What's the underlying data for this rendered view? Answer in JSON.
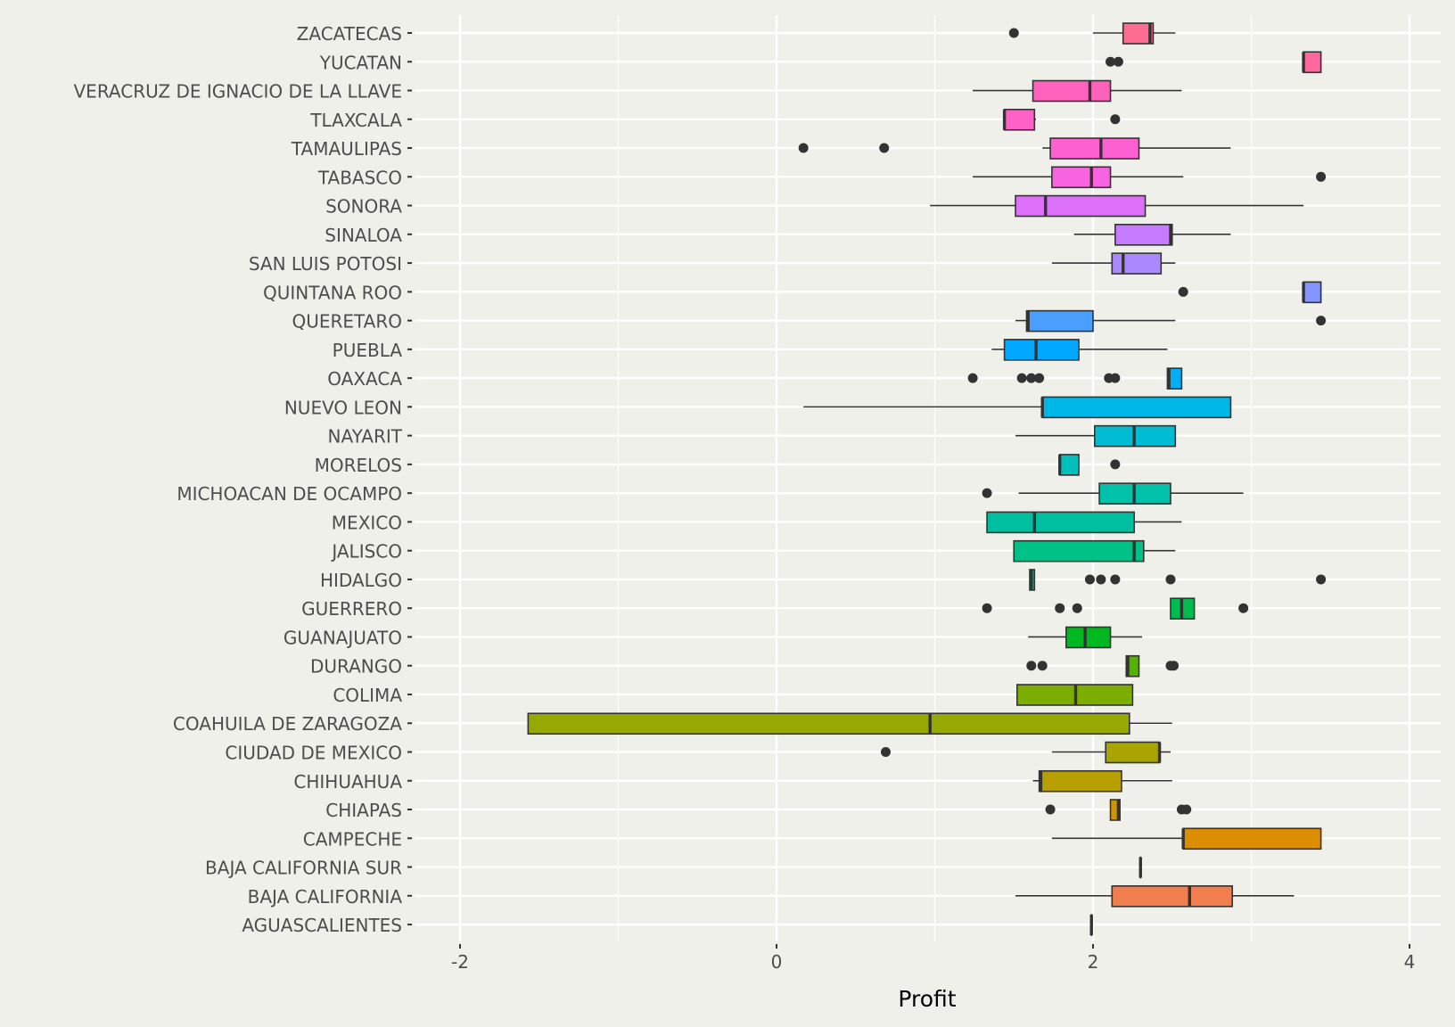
{
  "chart_data": {
    "type": "boxplot",
    "orientation": "horizontal",
    "title": "",
    "xlabel": "Profit",
    "ylabel": "",
    "xlim": [
      -2.3,
      4.2
    ],
    "x_ticks": [
      -2,
      0,
      2,
      4
    ],
    "x_tick_labels": [
      "-2",
      "0",
      "2",
      "4"
    ],
    "grid": true,
    "legend": "none",
    "categories": [
      {
        "name": "ZACATECAS",
        "color": "#FF6C91",
        "whisker_low": 2.0,
        "q1": 2.19,
        "median": 2.36,
        "q3": 2.38,
        "whisker_high": 2.52,
        "outliers": [
          1.5
        ]
      },
      {
        "name": "YUCATAN",
        "color": "#FF689F",
        "whisker_low": 3.33,
        "q1": 3.33,
        "median": 3.33,
        "q3": 3.44,
        "whisker_high": 3.44,
        "outliers": [
          2.11,
          2.16
        ]
      },
      {
        "name": "VERACRUZ DE IGNACIO DE LA LLAVE",
        "color": "#FF62BC",
        "whisker_low": 1.24,
        "q1": 1.62,
        "median": 1.98,
        "q3": 2.11,
        "whisker_high": 2.56,
        "outliers": []
      },
      {
        "name": "TLAXCALA",
        "color": "#FF61C7",
        "whisker_low": 1.44,
        "q1": 1.44,
        "median": 1.44,
        "q3": 1.63,
        "whisker_high": 1.64,
        "outliers": [
          2.14
        ]
      },
      {
        "name": "TAMAULIPAS",
        "color": "#FD61D1",
        "whisker_low": 1.68,
        "q1": 1.73,
        "median": 2.05,
        "q3": 2.29,
        "whisker_high": 2.87,
        "outliers": [
          0.17,
          0.68
        ]
      },
      {
        "name": "TABASCO",
        "color": "#F763E0",
        "whisker_low": 1.24,
        "q1": 1.74,
        "median": 1.99,
        "q3": 2.11,
        "whisker_high": 2.57,
        "outliers": [
          3.44
        ]
      },
      {
        "name": "SONORA",
        "color": "#DE71F9",
        "whisker_low": 0.97,
        "q1": 1.51,
        "median": 1.7,
        "q3": 2.33,
        "whisker_high": 3.33,
        "outliers": []
      },
      {
        "name": "SINALOA",
        "color": "#C77CFF",
        "whisker_low": 1.88,
        "q1": 2.14,
        "median": 2.49,
        "q3": 2.5,
        "whisker_high": 2.87,
        "outliers": []
      },
      {
        "name": "SAN LUIS POTOSI",
        "color": "#AC88FF",
        "whisker_low": 1.74,
        "q1": 2.12,
        "median": 2.19,
        "q3": 2.43,
        "whisker_high": 2.52,
        "outliers": []
      },
      {
        "name": "QUINTANA ROO",
        "color": "#8494FF",
        "whisker_low": 3.33,
        "q1": 3.33,
        "median": 3.33,
        "q3": 3.44,
        "whisker_high": 3.44,
        "outliers": [
          2.57
        ]
      },
      {
        "name": "QUERETARO",
        "color": "#4B9FFC",
        "whisker_low": 1.51,
        "q1": 1.58,
        "median": 1.59,
        "q3": 2.0,
        "whisker_high": 2.52,
        "outliers": [
          3.44
        ]
      },
      {
        "name": "PUEBLA",
        "color": "#00A9FF",
        "whisker_low": 1.36,
        "q1": 1.44,
        "median": 1.64,
        "q3": 1.91,
        "whisker_high": 2.47,
        "outliers": []
      },
      {
        "name": "OAXACA",
        "color": "#00B0F6",
        "whisker_low": 2.47,
        "q1": 2.47,
        "median": 2.48,
        "q3": 2.56,
        "whisker_high": 2.56,
        "outliers": [
          1.24,
          1.55,
          1.61,
          1.66,
          2.1,
          2.14
        ]
      },
      {
        "name": "NUEVO LEON",
        "color": "#00B8E7",
        "whisker_low": 0.17,
        "q1": 1.68,
        "median": 1.68,
        "q3": 2.87,
        "whisker_high": 2.87,
        "outliers": []
      },
      {
        "name": "NAYARIT",
        "color": "#00BDD4",
        "whisker_low": 1.51,
        "q1": 2.01,
        "median": 2.26,
        "q3": 2.52,
        "whisker_high": 2.52,
        "outliers": []
      },
      {
        "name": "MORELOS",
        "color": "#00C0BB",
        "whisker_low": 1.79,
        "q1": 1.79,
        "median": 1.79,
        "q3": 1.91,
        "whisker_high": 1.91,
        "outliers": [
          2.14
        ]
      },
      {
        "name": "MICHOACAN DE OCAMPO",
        "color": "#00C1A9",
        "whisker_low": 1.53,
        "q1": 2.04,
        "median": 2.26,
        "q3": 2.49,
        "whisker_high": 2.95,
        "outliers": [
          1.33
        ]
      },
      {
        "name": "MEXICO",
        "color": "#00BFA0",
        "whisker_low": 1.33,
        "q1": 1.33,
        "median": 1.63,
        "q3": 2.26,
        "whisker_high": 2.56,
        "outliers": []
      },
      {
        "name": "JALISCO",
        "color": "#00C186",
        "whisker_low": 1.5,
        "q1": 1.5,
        "median": 2.26,
        "q3": 2.32,
        "whisker_high": 2.52,
        "outliers": []
      },
      {
        "name": "HIDALGO",
        "color": "#00BF7D",
        "whisker_low": 1.6,
        "q1": 1.6,
        "median": 1.61,
        "q3": 1.63,
        "whisker_high": 1.63,
        "outliers": [
          1.98,
          2.05,
          2.14,
          2.49,
          3.44
        ]
      },
      {
        "name": "GUERRERO",
        "color": "#00BB4E",
        "whisker_low": 2.49,
        "q1": 2.49,
        "median": 2.56,
        "q3": 2.64,
        "whisker_high": 2.64,
        "outliers": [
          1.33,
          1.79,
          1.9,
          2.95
        ]
      },
      {
        "name": "GUANAJUATO",
        "color": "#00B81F",
        "whisker_low": 1.59,
        "q1": 1.83,
        "median": 1.95,
        "q3": 2.11,
        "whisker_high": 2.31,
        "outliers": []
      },
      {
        "name": "DURANGO",
        "color": "#53B400",
        "whisker_low": 2.21,
        "q1": 2.21,
        "median": 2.22,
        "q3": 2.29,
        "whisker_high": 2.29,
        "outliers": [
          1.61,
          1.68,
          2.49,
          2.51
        ]
      },
      {
        "name": "COLIMA",
        "color": "#7CAE00",
        "whisker_low": 1.52,
        "q1": 1.52,
        "median": 1.89,
        "q3": 2.25,
        "whisker_high": 2.25,
        "outliers": []
      },
      {
        "name": "COAHUILA DE ZARAGOZA",
        "color": "#96A900",
        "whisker_low": -1.57,
        "q1": -1.57,
        "median": 0.97,
        "q3": 2.23,
        "whisker_high": 2.5,
        "outliers": []
      },
      {
        "name": "CIUDAD DE MEXICO",
        "color": "#A8A400",
        "whisker_low": 1.74,
        "q1": 2.08,
        "median": 2.42,
        "q3": 2.42,
        "whisker_high": 2.49,
        "outliers": [
          0.69
        ]
      },
      {
        "name": "CHIHUAHUA",
        "color": "#B79F00",
        "whisker_low": 1.62,
        "q1": 1.66,
        "median": 1.67,
        "q3": 2.18,
        "whisker_high": 2.5,
        "outliers": []
      },
      {
        "name": "CHIAPAS",
        "color": "#CF9400",
        "whisker_low": 2.11,
        "q1": 2.11,
        "median": 2.16,
        "q3": 2.17,
        "whisker_high": 2.17,
        "outliers": [
          1.73,
          2.56,
          2.59
        ]
      },
      {
        "name": "CAMPECHE",
        "color": "#DB8E00",
        "whisker_low": 1.74,
        "q1": 2.57,
        "median": 2.57,
        "q3": 3.44,
        "whisker_high": 3.44,
        "outliers": []
      },
      {
        "name": "BAJA CALIFORNIA SUR",
        "color": "#E58700",
        "whisker_low": 2.3,
        "q1": 2.3,
        "median": 2.3,
        "q3": 2.3,
        "whisker_high": 2.3,
        "outliers": []
      },
      {
        "name": "BAJA CALIFORNIA",
        "color": "#F07E4F",
        "whisker_low": 1.51,
        "q1": 2.12,
        "median": 2.61,
        "q3": 2.88,
        "whisker_high": 3.27,
        "outliers": []
      },
      {
        "name": "AGUASCALIENTES",
        "color": "#F8766D",
        "whisker_low": 1.99,
        "q1": 1.99,
        "median": 1.99,
        "q3": 1.99,
        "whisker_high": 1.99,
        "outliers": []
      }
    ],
    "colors": {
      "panel_background": "#f0f0eb",
      "grid": "#ffffff",
      "outline": "#333333",
      "text": "#4d4d4d"
    }
  }
}
